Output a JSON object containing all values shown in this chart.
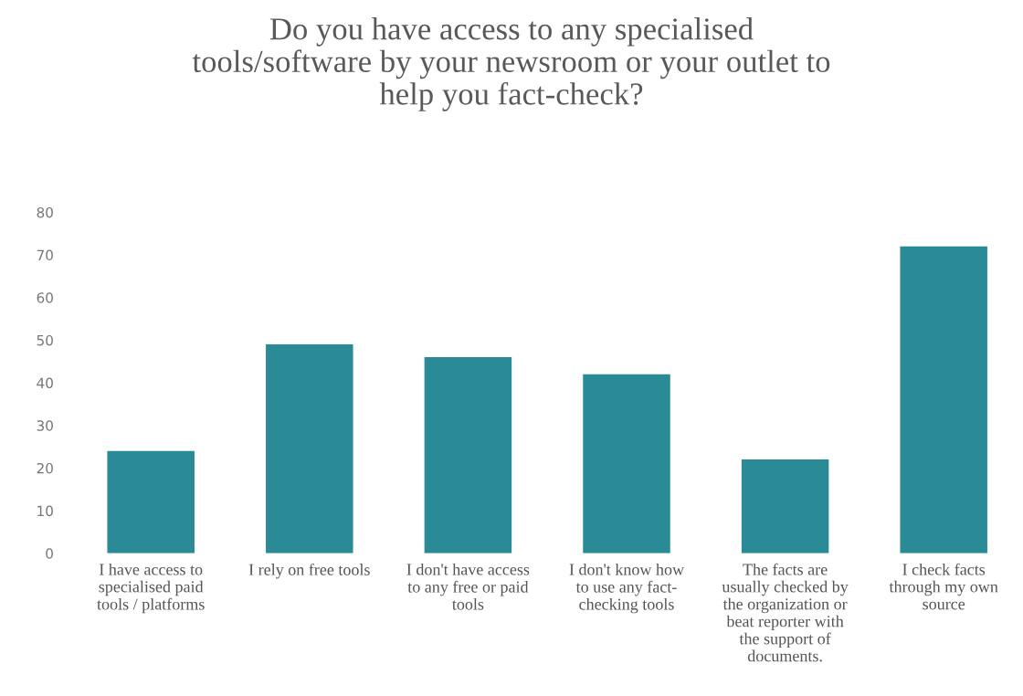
{
  "chart_data": {
    "type": "bar",
    "title": "Do you have access to any specialised\ntools/software by your newsroom or your outlet to\nhelp you fact-check?",
    "categories": [
      "I have access to\nspecialised paid\ntools / platforms",
      "I rely on free tools",
      "I don't have access\nto any free or paid\ntools",
      "I don't know how\nto use any fact-\nchecking tools",
      "The facts are\nusually checked by\nthe organization or\nbeat reporter with\nthe support of\ndocuments.",
      "I check facts\nthrough my own\nsource"
    ],
    "values": [
      24,
      49,
      46,
      42,
      22,
      72
    ],
    "color": "#2a8a96",
    "ylim": [
      0,
      80
    ],
    "yticks": [
      0,
      10,
      20,
      30,
      40,
      50,
      60,
      70,
      80
    ],
    "grid": false,
    "legend": false
  }
}
